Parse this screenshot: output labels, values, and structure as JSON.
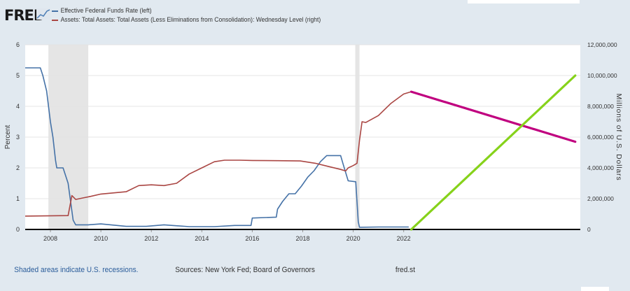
{
  "brand": {
    "logo_text": "FRED"
  },
  "legend": [
    {
      "label": "Effective Federal Funds Rate (left)",
      "color": "#4572a7"
    },
    {
      "label": "Assets: Total Assets: Total Assets (Less Eliminations from Consolidation): Wednesday Level (right)",
      "color": "#aa4643"
    }
  ],
  "footer": {
    "recession_note": "Shaded areas indicate U.S. recessions.",
    "sources": "Sources: New York Fed; Board of Governors",
    "link": "fred.st"
  },
  "chart_data": {
    "type": "line",
    "xlim": [
      2007.0,
      2029.0
    ],
    "x_ticks": [
      "2008",
      "2010",
      "2012",
      "2014",
      "2016",
      "2018",
      "2020",
      "2022"
    ],
    "y_left": {
      "label": "Percent",
      "lim": [
        0,
        6
      ],
      "ticks": [
        "0",
        "1",
        "2",
        "3",
        "4",
        "5",
        "6"
      ]
    },
    "y_right": {
      "label": "Millions of U.S. Dollars",
      "lim": [
        0,
        12000000
      ],
      "ticks": [
        "0",
        "2,000,000",
        "4,000,000",
        "6,000,000",
        "8,000,000",
        "10,000,000",
        "12,000,000"
      ]
    },
    "grid": true,
    "recessions": [
      [
        2007.92,
        2009.5
      ],
      [
        2020.08,
        2020.25
      ]
    ],
    "series": [
      {
        "name": "Effective Federal Funds Rate (left)",
        "axis": "left",
        "color": "#4572a7",
        "x": [
          2007.0,
          2007.6,
          2007.7,
          2007.85,
          2008.0,
          2008.1,
          2008.2,
          2008.25,
          2008.35,
          2008.5,
          2008.7,
          2008.8,
          2008.9,
          2009.0,
          2009.5,
          2010.0,
          2011.0,
          2011.8,
          2012.5,
          2013.5,
          2014.5,
          2015.3,
          2015.95,
          2016.0,
          2016.95,
          2017.0,
          2017.2,
          2017.45,
          2017.7,
          2017.95,
          2018.2,
          2018.45,
          2018.7,
          2018.95,
          2019.5,
          2019.6,
          2019.8,
          2020.1,
          2020.2,
          2020.25,
          2021.0,
          2022.2
        ],
        "y": [
          5.25,
          5.25,
          5.0,
          4.5,
          3.5,
          3.0,
          2.25,
          2.0,
          2.0,
          2.0,
          1.5,
          0.9,
          0.3,
          0.15,
          0.15,
          0.18,
          0.1,
          0.1,
          0.15,
          0.09,
          0.09,
          0.13,
          0.13,
          0.37,
          0.4,
          0.66,
          0.91,
          1.16,
          1.16,
          1.41,
          1.7,
          1.91,
          2.2,
          2.4,
          2.4,
          2.12,
          1.58,
          1.55,
          0.25,
          0.07,
          0.08,
          0.08
        ]
      },
      {
        "name": "Assets: Total Assets: Total Assets (Less Eliminations from Consolidation): Wednesday Level (right)",
        "axis": "right",
        "color": "#aa4643",
        "x": [
          2007.0,
          2008.7,
          2008.85,
          2009.0,
          2009.3,
          2009.6,
          2010.0,
          2011.0,
          2011.5,
          2012.0,
          2012.5,
          2013.0,
          2013.5,
          2014.0,
          2014.5,
          2014.9,
          2015.5,
          2016.0,
          2017.0,
          2017.9,
          2018.5,
          2019.0,
          2019.5,
          2019.7,
          2019.8,
          2020.0,
          2020.15,
          2020.25,
          2020.35,
          2020.5,
          2021.0,
          2021.5,
          2022.0,
          2022.3
        ],
        "y": [
          870000,
          900000,
          2200000,
          1950000,
          2050000,
          2150000,
          2300000,
          2450000,
          2850000,
          2900000,
          2850000,
          3000000,
          3600000,
          4000000,
          4400000,
          4500000,
          4500000,
          4480000,
          4470000,
          4450000,
          4300000,
          4100000,
          3900000,
          3800000,
          4000000,
          4150000,
          4300000,
          5800000,
          7000000,
          6950000,
          7400000,
          8200000,
          8800000,
          8950000
        ]
      }
    ],
    "annotations": [
      {
        "color": "#c0007f",
        "x": [
          2022.3,
          2028.8
        ],
        "y": [
          8950000,
          5700000
        ],
        "axis": "right"
      },
      {
        "color": "#86d21a",
        "x": [
          2022.3,
          2028.8
        ],
        "y": [
          0,
          10000000
        ],
        "axis": "right"
      }
    ]
  }
}
